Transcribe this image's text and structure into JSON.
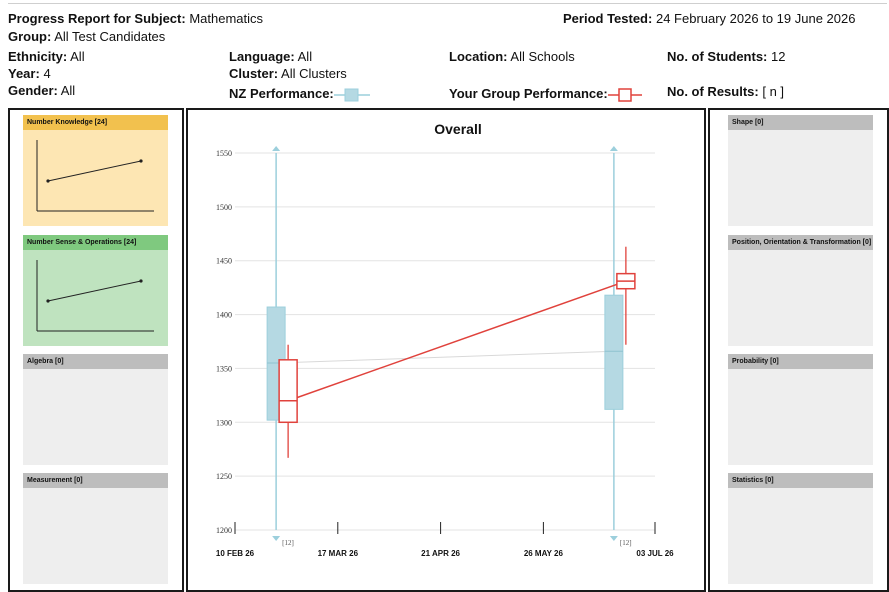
{
  "header": {
    "subject_label": "Progress Report for Subject:",
    "subject_value": "Mathematics",
    "period_label": "Period Tested:",
    "period_value": "24 February 2026 to 19 June 2026",
    "group_label": "Group:",
    "group_value": "All Test Candidates",
    "ethnicity_label": "Ethnicity:",
    "ethnicity_value": "All",
    "year_label": "Year:",
    "year_value": "4",
    "gender_label": "Gender:",
    "gender_value": "All",
    "language_label": "Language:",
    "language_value": "All",
    "cluster_label": "Cluster:",
    "cluster_value": "All Clusters",
    "nz_perf_label": "NZ Performance:",
    "location_label": "Location:",
    "location_value": "All Schools",
    "group_perf_label": "Your Group Performance:",
    "students_label": "No. of Students:",
    "students_value": "12",
    "results_label": "No. of Results:",
    "results_value": "[ n ]"
  },
  "colors": {
    "nz_box_fill": "#b5d9e3",
    "nz_line": "#9ccfdc",
    "group_line": "#e0423c",
    "panel_yellow_title": "#f2c14e",
    "panel_yellow_body": "#fde6b3",
    "panel_green_title": "#7fc97f",
    "panel_green_body": "#bfe3bf",
    "panel_grey_title": "#bdbdbd",
    "panel_grey_body": "#eeeeee"
  },
  "left_panels": [
    {
      "title": "Number Knowledge [24]",
      "style": "yellow",
      "has_graph": true
    },
    {
      "title": "Number Sense & Operations [24]",
      "style": "green",
      "has_graph": true
    },
    {
      "title": "Algebra [0]",
      "style": "grey",
      "has_graph": false
    },
    {
      "title": "Measurement [0]",
      "style": "grey",
      "has_graph": false
    }
  ],
  "right_panels": [
    {
      "title": "Shape [0]",
      "style": "grey",
      "has_graph": false
    },
    {
      "title": "Position, Orientation & Transformation [0]",
      "style": "grey",
      "has_graph": false
    },
    {
      "title": "Probability [0]",
      "style": "grey",
      "has_graph": false
    },
    {
      "title": "Statistics [0]",
      "style": "grey",
      "has_graph": false
    }
  ],
  "chart_data": {
    "type": "box",
    "title": "Overall",
    "ylim": [
      1200,
      1550
    ],
    "yticks": [
      1200,
      1250,
      1300,
      1350,
      1400,
      1450,
      1500,
      1550
    ],
    "xlim": [
      "2026-02-10",
      "2026-07-03"
    ],
    "xticks": [
      {
        "date": "2026-02-10",
        "label": "10 FEB 26"
      },
      {
        "date": "2026-03-17",
        "label": "17 MAR 26"
      },
      {
        "date": "2026-04-21",
        "label": "21 APR 26"
      },
      {
        "date": "2026-05-26",
        "label": "26 MAY 26"
      },
      {
        "date": "2026-07-03",
        "label": "03 JUL 26"
      }
    ],
    "grid": true,
    "series": [
      {
        "name": "NZ Performance",
        "points": [
          {
            "date": "2026-02-24",
            "whisker_low": 1200,
            "q1": 1302,
            "median": 1355,
            "q3": 1407,
            "whisker_high": 1550,
            "n_label": "[12]"
          },
          {
            "date": "2026-06-19",
            "whisker_low": 1200,
            "q1": 1312,
            "median": 1366,
            "q3": 1418,
            "whisker_high": 1550,
            "n_label": "[12]"
          }
        ]
      },
      {
        "name": "Your Group Performance",
        "points": [
          {
            "date": "2026-02-24",
            "whisker_low": 1267,
            "q1": 1300,
            "median": 1320,
            "q3": 1358,
            "whisker_high": 1372
          },
          {
            "date": "2026-06-19",
            "whisker_low": 1372,
            "q1": 1424,
            "median": 1431,
            "q3": 1438,
            "whisker_high": 1463
          }
        ]
      }
    ]
  }
}
